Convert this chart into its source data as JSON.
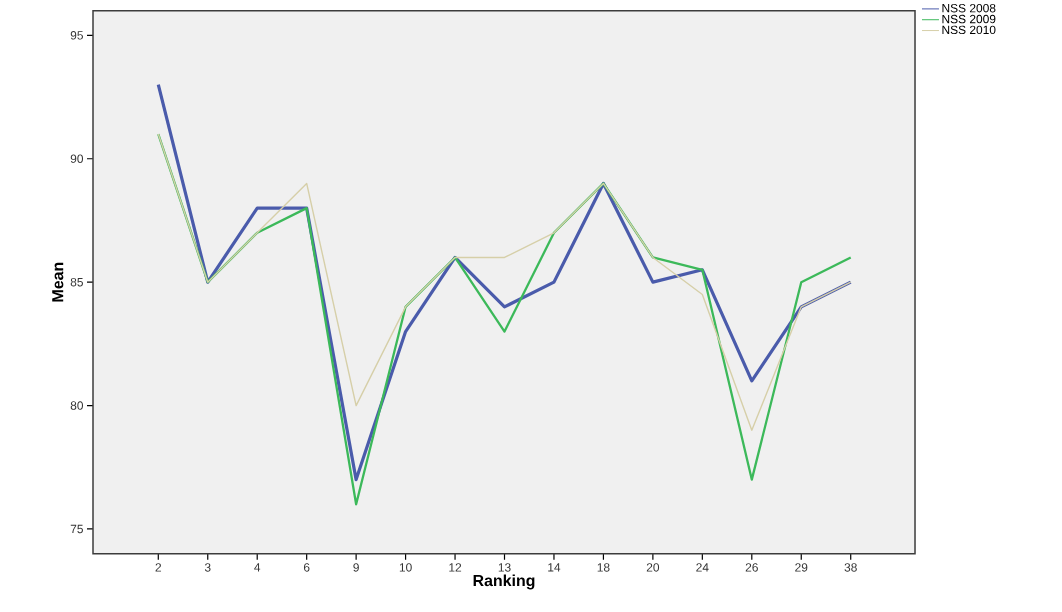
{
  "chart_data": {
    "type": "line",
    "xlabel": "Ranking",
    "ylabel": "Mean",
    "categories": [
      "2",
      "3",
      "4",
      "6",
      "9",
      "10",
      "12",
      "13",
      "14",
      "18",
      "20",
      "24",
      "26",
      "29",
      "38"
    ],
    "series": [
      {
        "name": "NSS 2008",
        "color": "#4a5bab",
        "values": [
          93,
          85,
          88,
          88,
          77,
          83,
          86,
          84,
          85,
          89,
          85,
          85.5,
          81,
          84,
          85
        ]
      },
      {
        "name": "NSS 2009",
        "color": "#3cb95a",
        "values": [
          91,
          85,
          87,
          88,
          76,
          84,
          86,
          83,
          87,
          89,
          86,
          85.5,
          77,
          85,
          86
        ]
      },
      {
        "name": "NSS 2010",
        "color": "#d6cfa8",
        "values": [
          91,
          85,
          87,
          89,
          80,
          84,
          86,
          86,
          87,
          89,
          86,
          84.5,
          79,
          84,
          85
        ]
      }
    ],
    "ylim": [
      74,
      96
    ],
    "yticks": [
      75,
      80,
      85,
      90,
      95
    ],
    "grid": false,
    "legend": "top right",
    "marker": "none",
    "line_style": "solid"
  }
}
